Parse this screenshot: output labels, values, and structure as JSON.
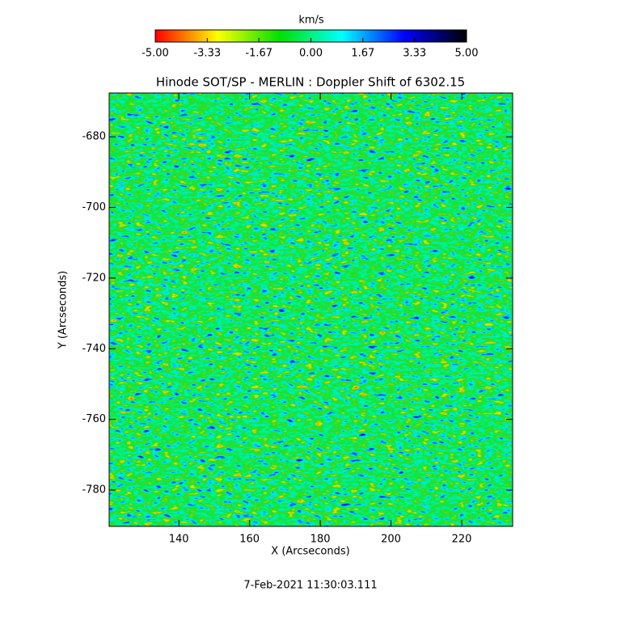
{
  "chart_data": {
    "type": "heatmap",
    "title": "Hinode SOT/SP - MERLIN : Doppler Shift of 6302.15",
    "x_label": "X (Arcseconds)",
    "y_label": "Y (Arcseconds)",
    "xlim": [
      120.3,
      234.4
    ],
    "xticks": [
      140,
      160,
      180,
      200,
      220
    ],
    "ylim": [
      -790.3,
      -667.6
    ],
    "yticks": [
      -680,
      -700,
      -720,
      -740,
      -760,
      -780
    ],
    "colorbar": {
      "title": "km/s",
      "lim": [
        -5,
        5
      ],
      "colors": [
        "#ff0000",
        "#ffff00",
        "#00e000",
        "#00ffff",
        "#0000ff",
        "#000000"
      ],
      "ticks": [
        {
          "value": -5,
          "label": "-5.00"
        },
        {
          "value": -3.33,
          "label": "-3.33"
        },
        {
          "value": -1.67,
          "label": "-1.67"
        },
        {
          "value": 0,
          "label": "0.00"
        },
        1.67,
        3.33,
        {
          "value": 5,
          "label": "5.00"
        }
      ]
    },
    "footer": "7-Feb-2021 11:30:03.111"
  }
}
